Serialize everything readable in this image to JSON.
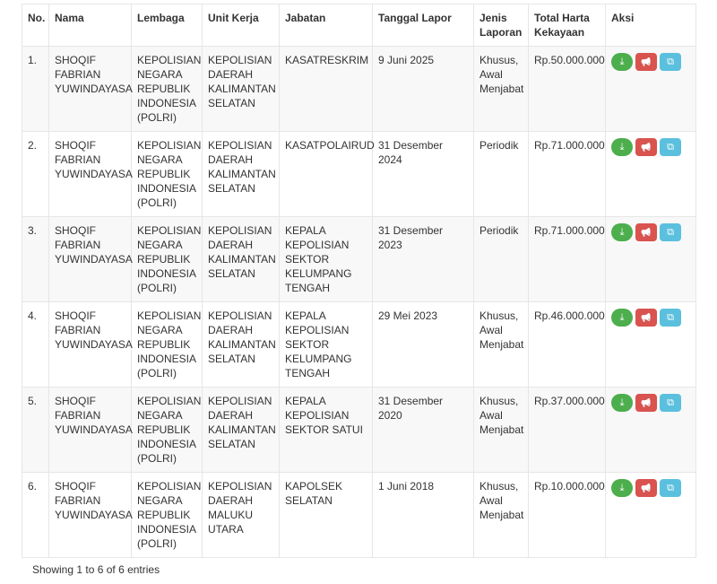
{
  "headers": [
    "No.",
    "Nama",
    "Lembaga",
    "Unit Kerja",
    "Jabatan",
    "Tanggal Lapor",
    "Jenis Laporan",
    "Total Harta Kekayaan",
    "Aksi"
  ],
  "rows": [
    {
      "no": "1.",
      "nama": "SHOQIF FABRIAN YUWINDAYASA",
      "lembaga": "KEPOLISIAN NEGARA REPUBLIK INDONESIA (POLRI)",
      "unit": "KEPOLISIAN DAERAH KALIMANTAN SELATAN",
      "jabatan": "KASATRESKRIM",
      "tanggal": "9 Juni 2025",
      "jenis": "Khusus, Awal Menjabat",
      "total": "Rp.50.000.000"
    },
    {
      "no": "2.",
      "nama": "SHOQIF FABRIAN YUWINDAYASA",
      "lembaga": "KEPOLISIAN NEGARA REPUBLIK INDONESIA (POLRI)",
      "unit": "KEPOLISIAN DAERAH KALIMANTAN SELATAN",
      "jabatan": "KASATPOLAIRUD",
      "tanggal": "31 Desember 2024",
      "jenis": "Periodik",
      "total": "Rp.71.000.000"
    },
    {
      "no": "3.",
      "nama": "SHOQIF FABRIAN YUWINDAYASA",
      "lembaga": "KEPOLISIAN NEGARA REPUBLIK INDONESIA (POLRI)",
      "unit": "KEPOLISIAN DAERAH KALIMANTAN SELATAN",
      "jabatan": "KEPALA KEPOLISIAN SEKTOR KELUMPANG TENGAH",
      "tanggal": "31 Desember 2023",
      "jenis": "Periodik",
      "total": "Rp.71.000.000"
    },
    {
      "no": "4.",
      "nama": "SHOQIF FABRIAN YUWINDAYASA",
      "lembaga": "KEPOLISIAN NEGARA REPUBLIK INDONESIA (POLRI)",
      "unit": "KEPOLISIAN DAERAH KALIMANTAN SELATAN",
      "jabatan": "KEPALA KEPOLISIAN SEKTOR KELUMPANG TENGAH",
      "tanggal": "29 Mei 2023",
      "jenis": "Khusus, Awal Menjabat",
      "total": "Rp.46.000.000"
    },
    {
      "no": "5.",
      "nama": "SHOQIF FABRIAN YUWINDAYASA",
      "lembaga": "KEPOLISIAN NEGARA REPUBLIK INDONESIA (POLRI)",
      "unit": "KEPOLISIAN DAERAH KALIMANTAN SELATAN",
      "jabatan": "KEPALA KEPOLISIAN SEKTOR SATUI",
      "tanggal": "31 Desember 2020",
      "jenis": "Khusus, Awal Menjabat",
      "total": "Rp.37.000.000"
    },
    {
      "no": "6.",
      "nama": "SHOQIF FABRIAN YUWINDAYASA",
      "lembaga": "KEPOLISIAN NEGARA REPUBLIK INDONESIA (POLRI)",
      "unit": "KEPOLISIAN DAERAH MALUKU UTARA",
      "jabatan": "KAPOLSEK SELATAN",
      "tanggal": "1 Juni 2018",
      "jenis": "Khusus, Awal Menjabat",
      "total": "Rp.10.000.000"
    }
  ],
  "actions": [
    {
      "icon": "download-icon",
      "glyph": "⤓",
      "color": "#4cae4c"
    },
    {
      "icon": "megaphone-icon",
      "glyph": "📢",
      "color": "#d9534f"
    },
    {
      "icon": "copy-icon",
      "glyph": "⧉",
      "color": "#5bc0de"
    }
  ],
  "footer": "Showing 1 to 6 of 6 entries"
}
